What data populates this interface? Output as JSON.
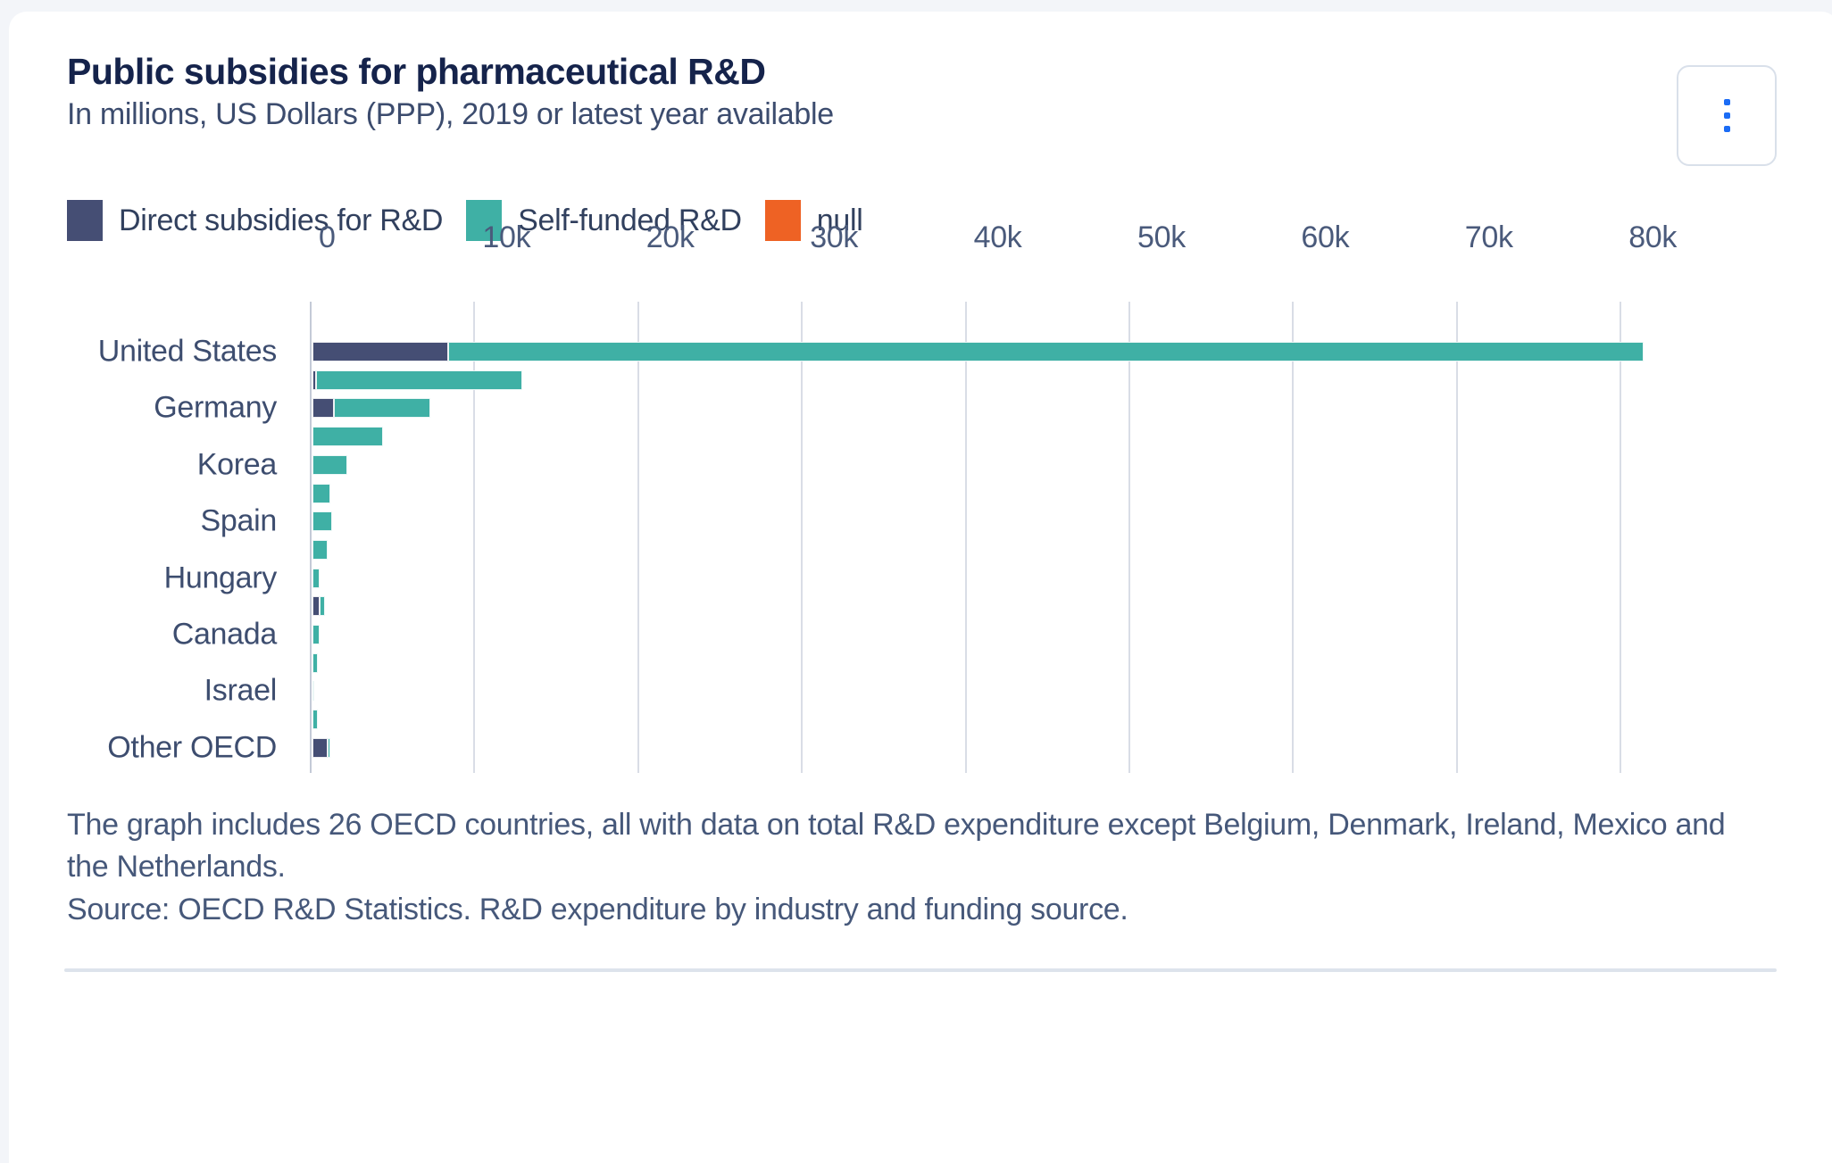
{
  "page": {
    "background": "#f3f5f9",
    "card_background": "#ffffff"
  },
  "header": {
    "title": "Public subsidies for pharmaceutical R&D",
    "subtitle": "In millions, US Dollars (PPP), 2019 or latest year available"
  },
  "menu_button": {
    "icon": "kebab-vertical-icon",
    "dot_color": "#1b6cf5"
  },
  "legend": {
    "items": [
      {
        "label": "Direct subsidies for R&D",
        "color": "#454e74",
        "series_key": "direct"
      },
      {
        "label": "Self-funded R&D",
        "color": "#3fb0a5",
        "series_key": "self"
      },
      {
        "label": "null",
        "color": "#ee6224",
        "series_key": "null"
      }
    ]
  },
  "chart_data": {
    "type": "bar",
    "orientation": "horizontal",
    "stacked": true,
    "title": "Public subsidies for pharmaceutical R&D",
    "subtitle": "In millions, US Dollars (PPP), 2019 or latest year available",
    "unit": "millions of US Dollars (PPP)",
    "x_axis": {
      "tick_labels": [
        "0",
        "10k",
        "20k",
        "30k",
        "40k",
        "50k",
        "60k",
        "70k",
        "80k"
      ],
      "tick_values": [
        0,
        10000,
        20000,
        30000,
        40000,
        50000,
        60000,
        70000,
        80000
      ],
      "visible_max": 89500,
      "grid": true
    },
    "categories": [
      "United States",
      "",
      "Germany",
      "",
      "Korea",
      "",
      "Spain",
      "",
      "Hungary",
      "",
      "Canada",
      "",
      "Israel",
      "",
      "Other OECD"
    ],
    "labeled_categories": [
      "United States",
      "Germany",
      "Korea",
      "Spain",
      "Hungary",
      "Canada",
      "Israel",
      "Other OECD"
    ],
    "series": [
      {
        "name": "Direct subsidies for R&D",
        "color": "#454e74",
        "values": [
          8300,
          200,
          1300,
          0,
          0,
          0,
          0,
          0,
          0,
          430,
          0,
          0,
          0,
          0,
          900
        ]
      },
      {
        "name": "Self-funded R&D",
        "color": "#3fb0a5",
        "values": [
          73000,
          12600,
          5900,
          4300,
          2100,
          1100,
          1200,
          950,
          430,
          340,
          420,
          330,
          60,
          300,
          200
        ]
      },
      {
        "name": "null",
        "color": "#ee6224",
        "values": [
          0,
          0,
          0,
          0,
          0,
          0,
          0,
          0,
          0,
          0,
          0,
          0,
          0,
          0,
          0
        ]
      }
    ],
    "legend_position": "top-left",
    "notes_visible": true
  },
  "notes": {
    "note": "The graph includes 26 OECD countries, all with data on total R&D expenditure except Belgium, Denmark, Ireland, Mexico and the Netherlands.",
    "source": "Source: OECD R&D Statistics. R&D expenditure by industry and funding source."
  }
}
